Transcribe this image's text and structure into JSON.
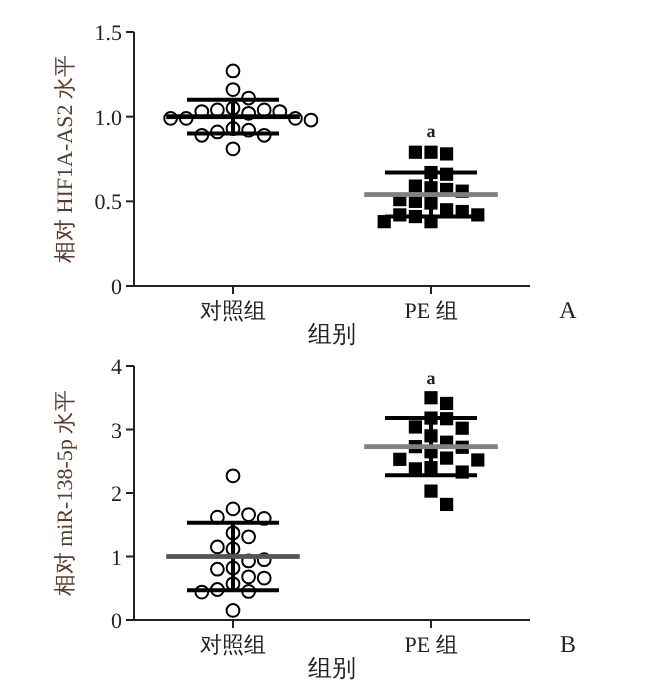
{
  "chart_data": [
    {
      "type": "scatter",
      "categories": [
        "对照组",
        "PE 组"
      ],
      "xlabel": "组别",
      "ylabel": "相对 HIF1A-AS2 水平",
      "ylim": [
        0,
        1.5
      ],
      "yticks": [
        0,
        0.5,
        {
          "value": 1,
          "label": "1.0"
        },
        1.5
      ],
      "annotations": [
        {
          "text": "a",
          "x": "PE 组",
          "y": 0.88
        },
        "A"
      ],
      "series": [
        {
          "marker": "circle",
          "color": "#000000",
          "x": [
            "对照组",
            "对照组",
            "对照组",
            "对照组",
            "对照组",
            "对照组",
            "对照组",
            "对照组",
            "对照组",
            "对照组",
            "对照组",
            "对照组",
            "对照组",
            "对照组",
            "对照组",
            "对照组",
            "对照组",
            "对照组",
            "对照组"
          ],
          "values": [
            1.27,
            1.16,
            1.11,
            1.05,
            1.04,
            1.04,
            1.03,
            1.02,
            1.03,
            0.99,
            0.99,
            0.99,
            0.98,
            0.93,
            0.92,
            0.91,
            0.89,
            0.89,
            0.81
          ]
        },
        {
          "marker": "square",
          "color": "#000000",
          "x": [
            "PE 组",
            "PE 组",
            "PE 组",
            "PE 组",
            "PE 组",
            "PE 组",
            "PE 组",
            "PE 组",
            "PE 组",
            "PE 组",
            "PE 组",
            "PE 组",
            "PE 组",
            "PE 组",
            "PE 组",
            "PE 组",
            "PE 组",
            "PE 组",
            "PE 组"
          ],
          "values": [
            0.79,
            0.78,
            0.79,
            0.67,
            0.66,
            0.58,
            0.57,
            0.59,
            0.56,
            0.51,
            0.49,
            0.5,
            0.45,
            0.44,
            0.42,
            0.41,
            0.42,
            0.38,
            0.38
          ]
        },
        {
          "type": "box",
          "marker": "none",
          "colors": [
            "#000000",
            "#808080"
          ],
          "boxes": [
            {
              "low": 0.9,
              "q1": 1.0,
              "median": 1.0,
              "q3": 1.0,
              "high": 1.1
            },
            {
              "low": 0.41,
              "q1": 0.54,
              "median": 0.54,
              "q3": 0.54,
              "high": 0.67
            }
          ]
        }
      ]
    },
    {
      "type": "scatter",
      "categories": [
        "对照组",
        "PE 组"
      ],
      "xlabel": "组别",
      "ylabel": "相对 miR-138-5p 水平",
      "ylim": [
        0,
        4
      ],
      "yticks": [
        0,
        1,
        2,
        3,
        4
      ],
      "annotations": [
        {
          "text": "a",
          "x": "PE 组",
          "y": 3.71
        },
        "B"
      ],
      "series": [
        {
          "marker": "circle",
          "color": "#000000",
          "x": [
            "对照组",
            "对照组",
            "对照组",
            "对照组",
            "对照组",
            "对照组",
            "对照组",
            "对照组",
            "对照组",
            "对照组",
            "对照组",
            "对照组",
            "对照组",
            "对照组",
            "对照组",
            "对照组",
            "对照组",
            "对照组",
            "对照组",
            "对照组"
          ],
          "values": [
            2.27,
            1.75,
            1.66,
            1.62,
            1.6,
            1.37,
            1.31,
            1.15,
            1.12,
            0.93,
            0.95,
            0.82,
            0.8,
            0.68,
            0.66,
            0.57,
            0.48,
            0.45,
            0.44,
            0.15
          ]
        },
        {
          "marker": "square",
          "color": "#000000",
          "x": [
            "PE 组",
            "PE 组",
            "PE 组",
            "PE 组",
            "PE 组",
            "PE 组",
            "PE 组",
            "PE 组",
            "PE 组",
            "PE 组",
            "PE 组",
            "PE 组",
            "PE 组",
            "PE 组",
            "PE 组",
            "PE 组",
            "PE 组",
            "PE 组",
            "PE 组"
          ],
          "values": [
            3.5,
            3.41,
            3.18,
            3.17,
            3.04,
            3.02,
            2.9,
            2.8,
            2.73,
            2.72,
            2.65,
            2.55,
            2.53,
            2.52,
            2.4,
            2.38,
            2.33,
            2.03,
            1.82
          ]
        },
        {
          "type": "box",
          "marker": "none",
          "colors": [
            "#555555",
            "#808080"
          ],
          "boxes": [
            {
              "low": 0.47,
              "q1": 1.0,
              "median": 1.0,
              "q3": 1.0,
              "high": 1.53
            },
            {
              "low": 2.28,
              "q1": 2.73,
              "median": 2.73,
              "q3": 2.73,
              "high": 3.18
            }
          ]
        }
      ]
    }
  ]
}
